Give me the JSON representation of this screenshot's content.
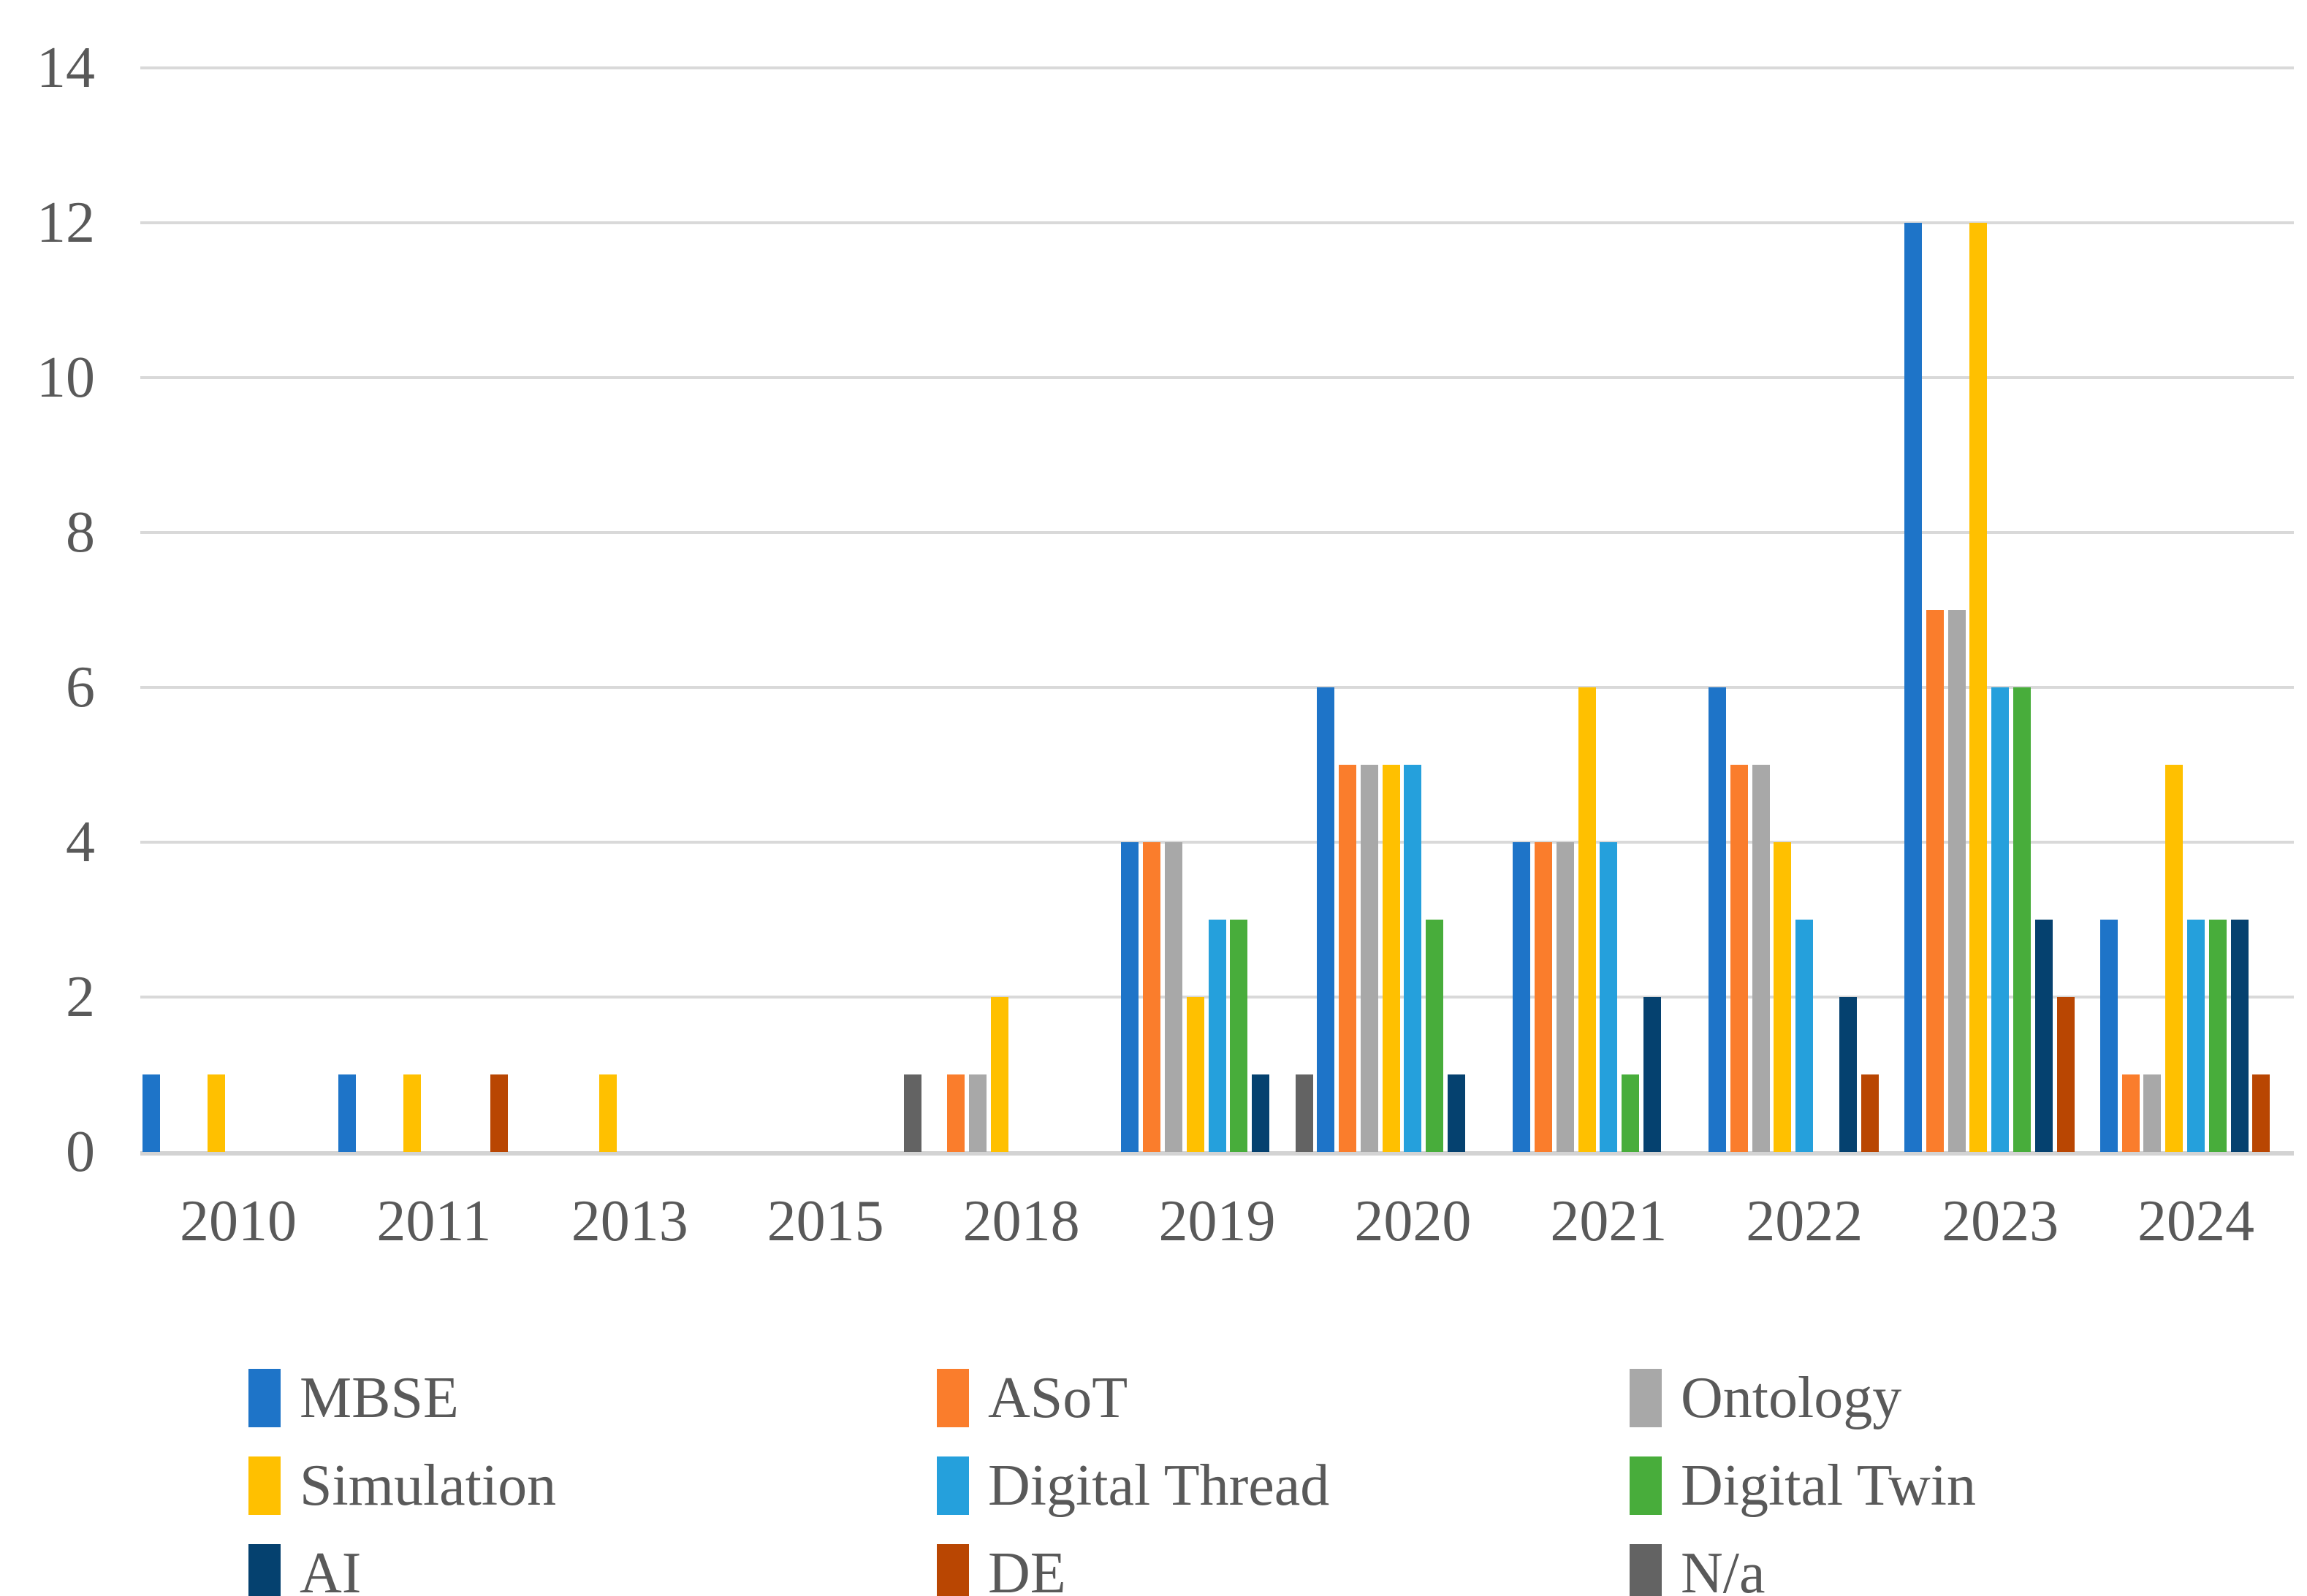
{
  "chart_data": {
    "type": "bar",
    "title": "",
    "xlabel": "",
    "ylabel": "",
    "categories": [
      "2010",
      "2011",
      "2013",
      "2015",
      "2018",
      "2019",
      "2020",
      "2021",
      "2022",
      "2023",
      "2024"
    ],
    "series": [
      {
        "name": "MBSE",
        "color": "#1E74C8",
        "values": [
          1,
          1,
          0,
          0,
          0,
          4,
          6,
          4,
          6,
          12,
          3
        ]
      },
      {
        "name": "ASoT",
        "color": "#FA7D2C",
        "values": [
          0,
          0,
          0,
          0,
          1,
          4,
          5,
          4,
          5,
          7,
          1
        ]
      },
      {
        "name": "Ontology",
        "color": "#A8A8A8",
        "values": [
          0,
          0,
          0,
          0,
          1,
          4,
          5,
          4,
          5,
          7,
          1
        ]
      },
      {
        "name": "Simulation",
        "color": "#FFC000",
        "values": [
          1,
          1,
          1,
          0,
          2,
          2,
          5,
          6,
          4,
          12,
          5
        ]
      },
      {
        "name": "Digital Thread",
        "color": "#25A0DC",
        "values": [
          0,
          0,
          0,
          0,
          0,
          3,
          5,
          4,
          3,
          6,
          3
        ]
      },
      {
        "name": "Digital Twin",
        "color": "#48AD3B",
        "values": [
          0,
          0,
          0,
          0,
          0,
          3,
          3,
          1,
          0,
          6,
          3
        ]
      },
      {
        "name": "AI",
        "color": "#05416F",
        "values": [
          0,
          0,
          0,
          0,
          0,
          1,
          1,
          2,
          2,
          3,
          3
        ]
      },
      {
        "name": "DE",
        "color": "#B94602",
        "values": [
          0,
          1,
          0,
          0,
          0,
          0,
          0,
          0,
          1,
          2,
          1
        ]
      },
      {
        "name": "N/a",
        "color": "#636363",
        "values": [
          0,
          0,
          0,
          1,
          0,
          1,
          0,
          0,
          0,
          0,
          0
        ]
      }
    ],
    "y_ticks": [
      0,
      2,
      4,
      6,
      8,
      10,
      12,
      14
    ],
    "ylim": [
      0,
      14
    ],
    "grid": true,
    "gridline_color": "#d9d9d9",
    "axis_text_color": "#595959",
    "legend_position": "bottom",
    "legend_columns": 3,
    "legend_order_row_major": [
      "MBSE",
      "ASoT",
      "Ontology",
      "Simulation",
      "Digital Thread",
      "Digital Twin",
      "AI",
      "DE",
      "N/a"
    ]
  }
}
